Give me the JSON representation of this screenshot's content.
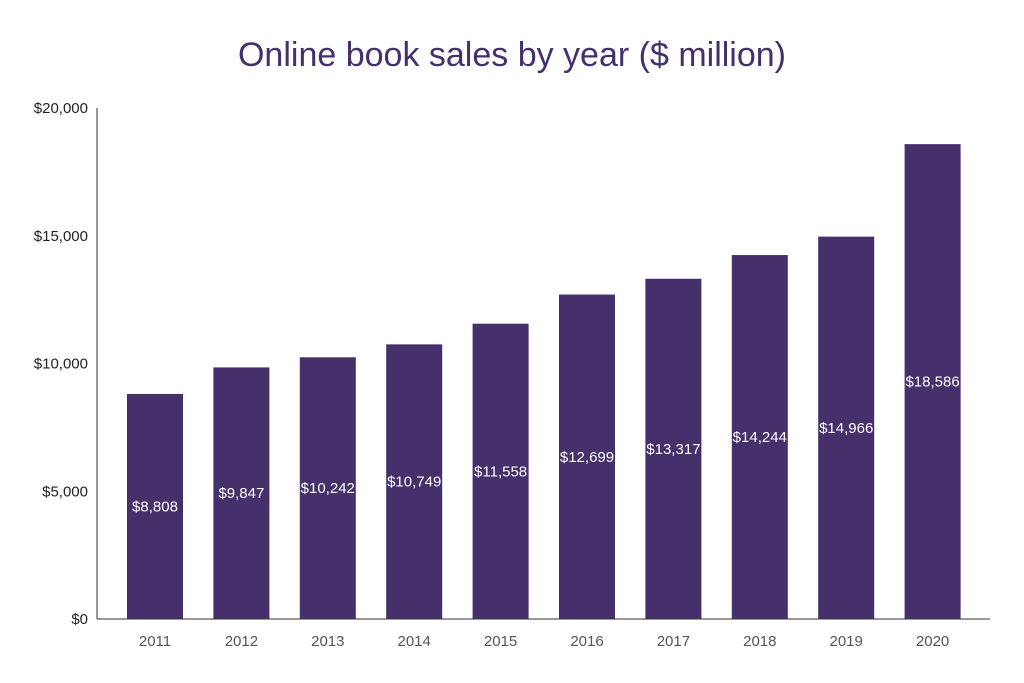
{
  "chart_data": {
    "type": "bar",
    "title": "Online book sales by year ($ million)",
    "xlabel": "",
    "ylabel": "",
    "categories": [
      "2011",
      "2012",
      "2013",
      "2014",
      "2015",
      "2016",
      "2017",
      "2018",
      "2019",
      "2020"
    ],
    "values": [
      8808,
      9847,
      10242,
      10749,
      11558,
      12699,
      13317,
      14244,
      14966,
      18586
    ],
    "data_labels": [
      "$8,808",
      "$9,847",
      "$10,242",
      "$10,749",
      "$11,558",
      "$12,699",
      "$13,317",
      "$14,244",
      "$14,966",
      "$18,586"
    ],
    "ylim": [
      0,
      20000
    ],
    "yticks": [
      0,
      5000,
      10000,
      15000,
      20000
    ],
    "ytick_labels": [
      "$0",
      "$5,000",
      "$10,000",
      "$15,000",
      "$20,000"
    ],
    "grid": false,
    "legend": "none",
    "bar_color": "#45306b",
    "title_color": "#45306b"
  }
}
